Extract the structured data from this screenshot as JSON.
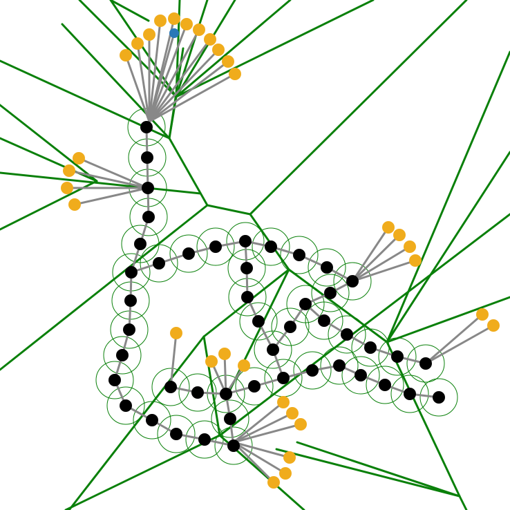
{
  "diagram": {
    "colors": {
      "background": "#ffffff",
      "voronoi_edge": "#0a800a",
      "node_halo": "#0a800a",
      "spoke": "#888888",
      "spine_node": "#000000",
      "leaf_node": "#f0ac1c",
      "root_node": "#2a78b8"
    },
    "node_kinds": [
      "spine-node",
      "leaf-node",
      "root-node"
    ],
    "edge_kinds": [
      "spine-edge",
      "spoke-edge",
      "voronoi-edge"
    ]
  }
}
